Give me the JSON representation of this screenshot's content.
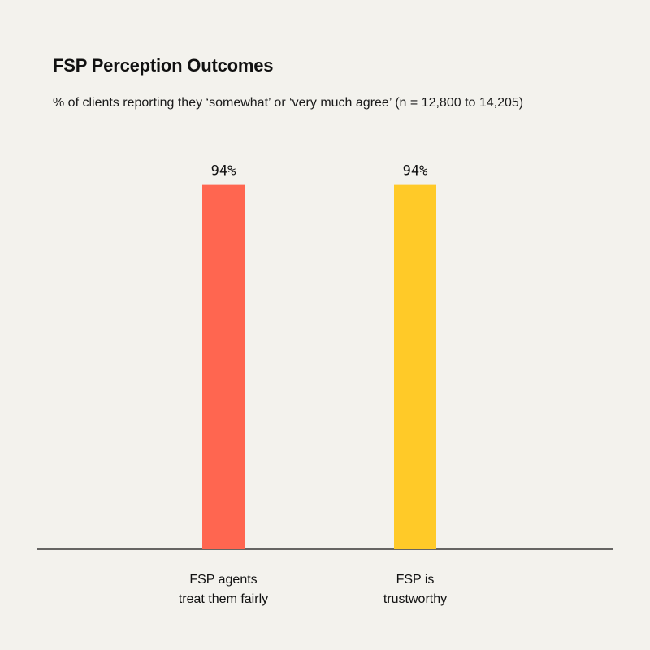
{
  "chart_data": {
    "type": "bar",
    "title": "FSP Perception Outcomes",
    "subtitle": "% of clients reporting they ‘somewhat’ or ‘very much agree’ (n = 12,800 to 14,205)",
    "categories": [
      [
        "FSP agents",
        "treat them fairly"
      ],
      [
        "FSP is",
        "trustworthy"
      ]
    ],
    "values": [
      94,
      94
    ],
    "data_labels": [
      "94%",
      "94%"
    ],
    "colors": [
      "#ff6650",
      "#ffca28"
    ],
    "ylim": [
      0,
      100
    ],
    "grid": false,
    "legend": "none"
  }
}
